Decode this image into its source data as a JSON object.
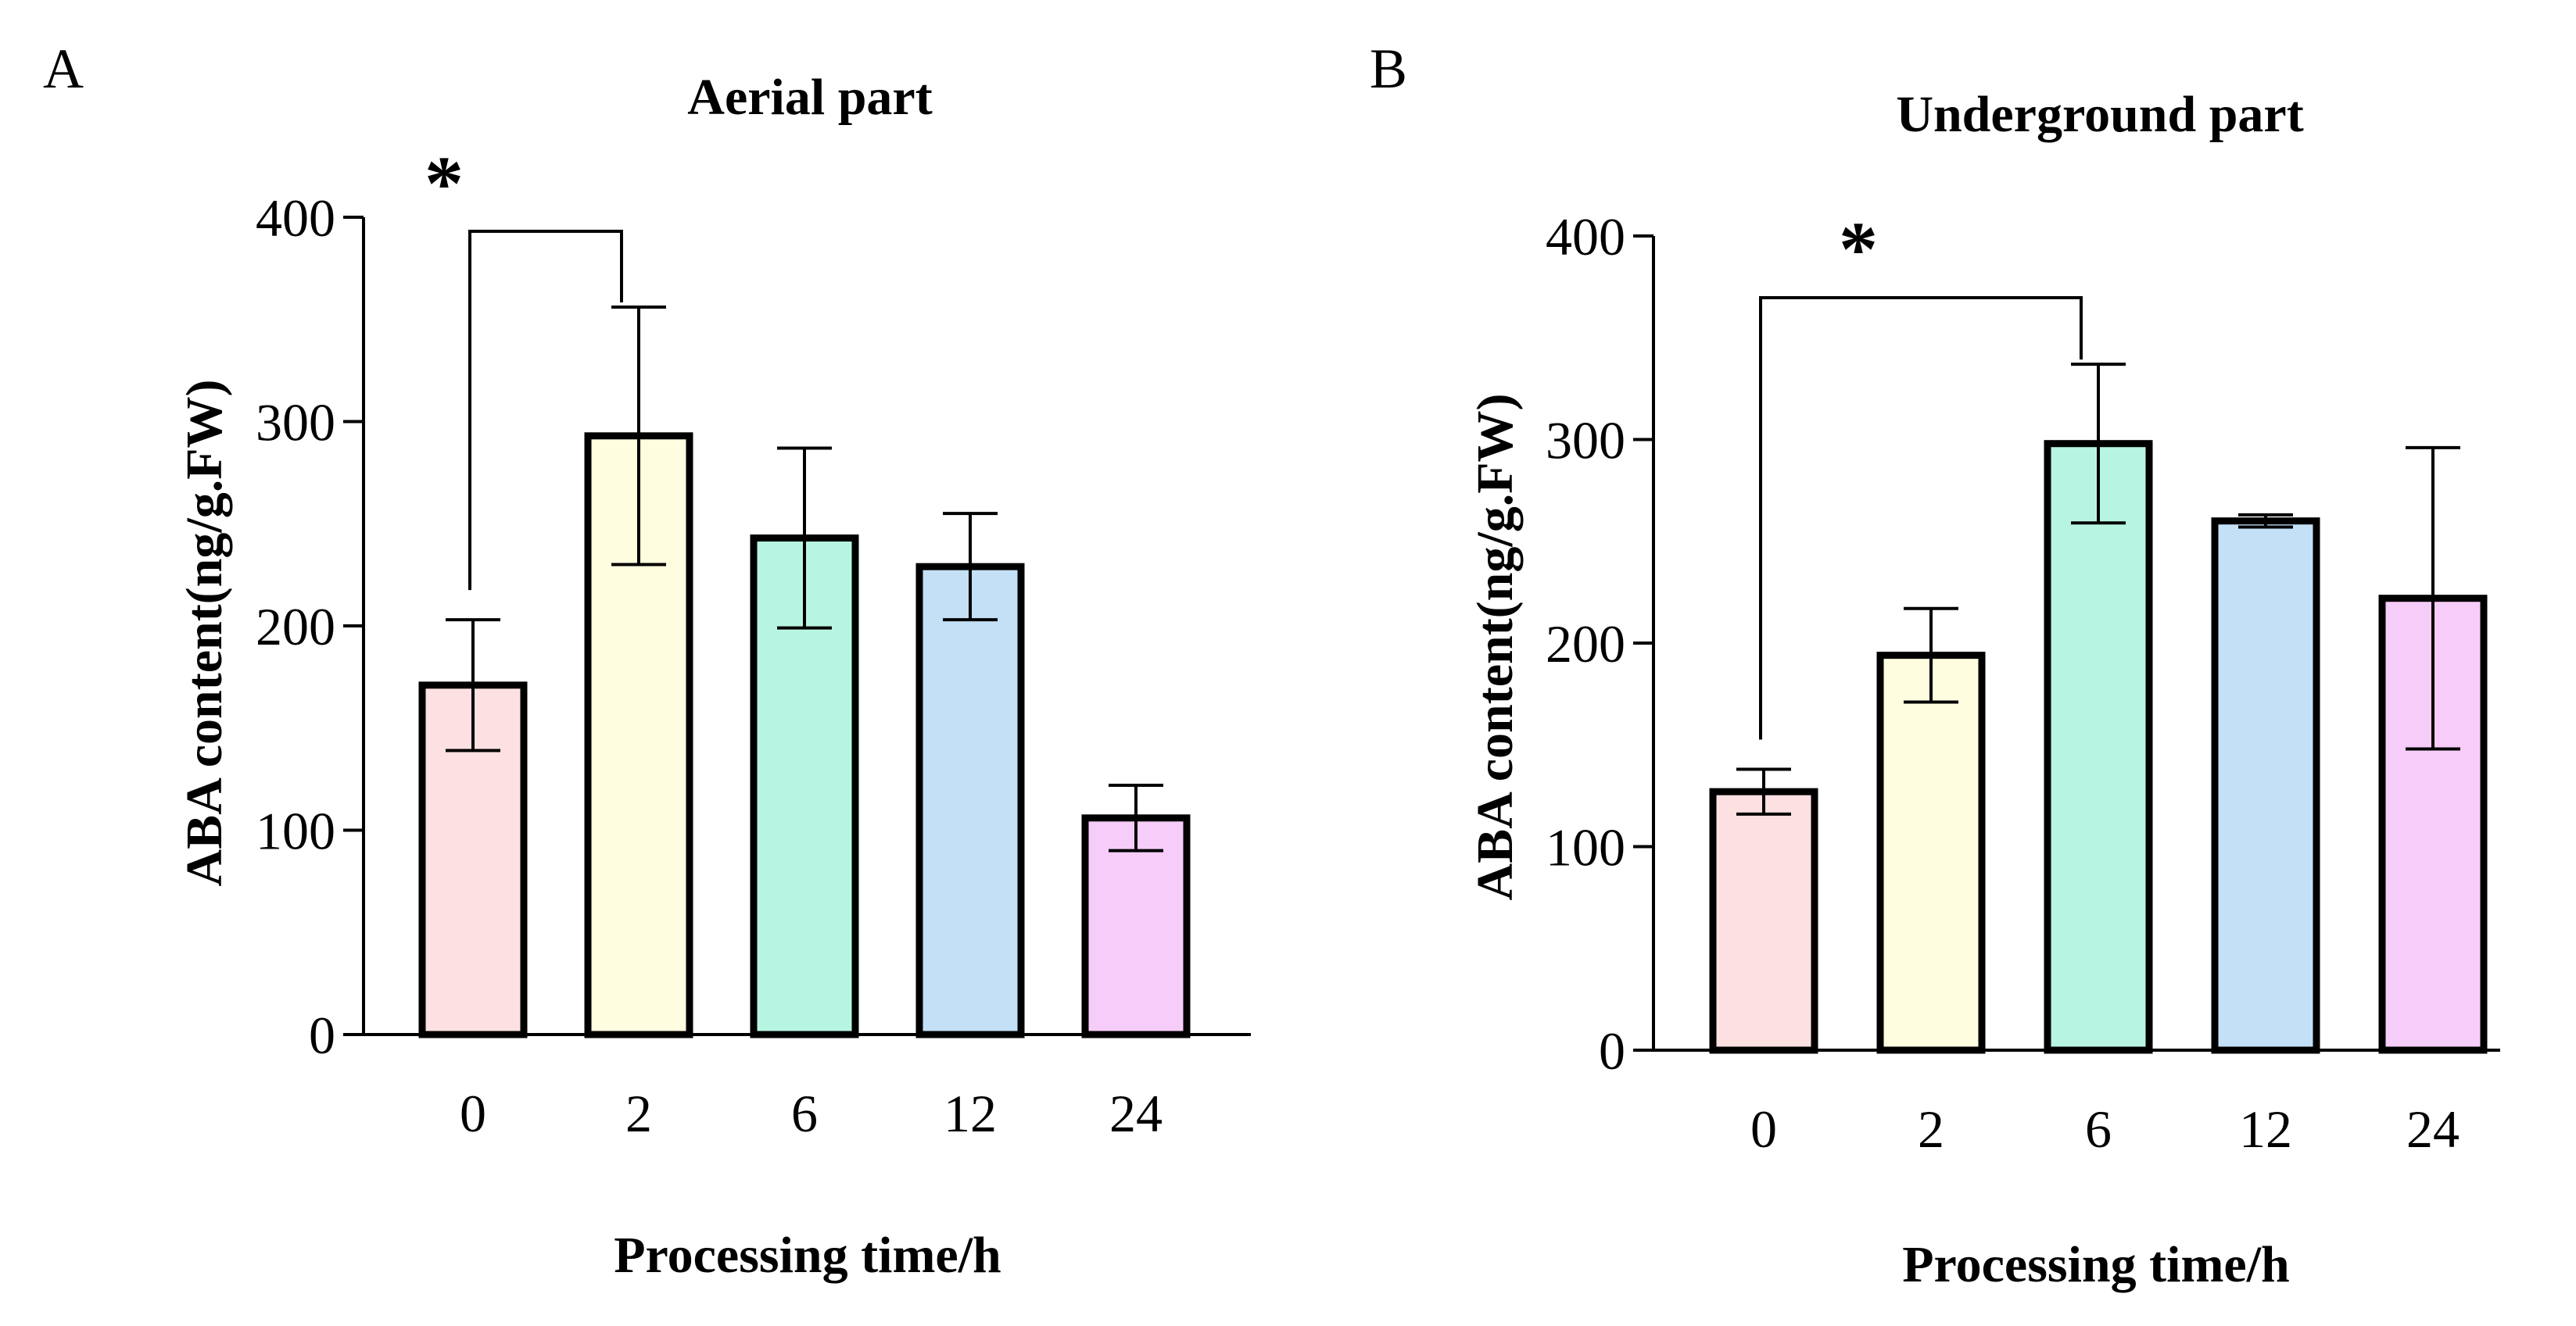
{
  "chart_data": [
    {
      "type": "bar",
      "panel": "A",
      "title": "Aerial part",
      "xlabel": "Processing time/h",
      "ylabel": "ABA content(ng/g.FW)",
      "categories": [
        "0",
        "2",
        "6",
        "12",
        "24"
      ],
      "values": [
        171,
        293,
        243,
        229,
        106
      ],
      "errors": [
        32,
        63,
        44,
        26,
        16
      ],
      "colors": [
        "#fde0e1",
        "#fefde0",
        "#b7f5e2",
        "#c3e0f6",
        "#f6ccf8"
      ],
      "yticks": [
        0,
        100,
        200,
        300,
        400
      ],
      "ytick_labels": [
        "0",
        "100",
        "200",
        "300",
        "400"
      ],
      "ylim": [
        0,
        400
      ],
      "significance": {
        "from": 0,
        "to": 1,
        "label": "*"
      }
    },
    {
      "type": "bar",
      "panel": "B",
      "title": "Underground part",
      "xlabel": "Processing time/h",
      "ylabel": "ABA content(ng/g.FW)",
      "categories": [
        "0",
        "2",
        "6",
        "12",
        "24"
      ],
      "values": [
        127,
        194,
        298,
        260,
        222
      ],
      "errors": [
        11,
        23,
        39,
        3,
        74
      ],
      "colors": [
        "#fde0e1",
        "#fefde0",
        "#b7f5e2",
        "#c3e0f6",
        "#f6ccf8"
      ],
      "yticks": [
        0,
        100,
        200,
        300,
        400
      ],
      "ytick_labels": [
        "0",
        "100",
        "200",
        "300",
        "400"
      ],
      "ylim": [
        0,
        400
      ],
      "significance": {
        "from": 0,
        "to": 2,
        "label": "*"
      }
    }
  ]
}
